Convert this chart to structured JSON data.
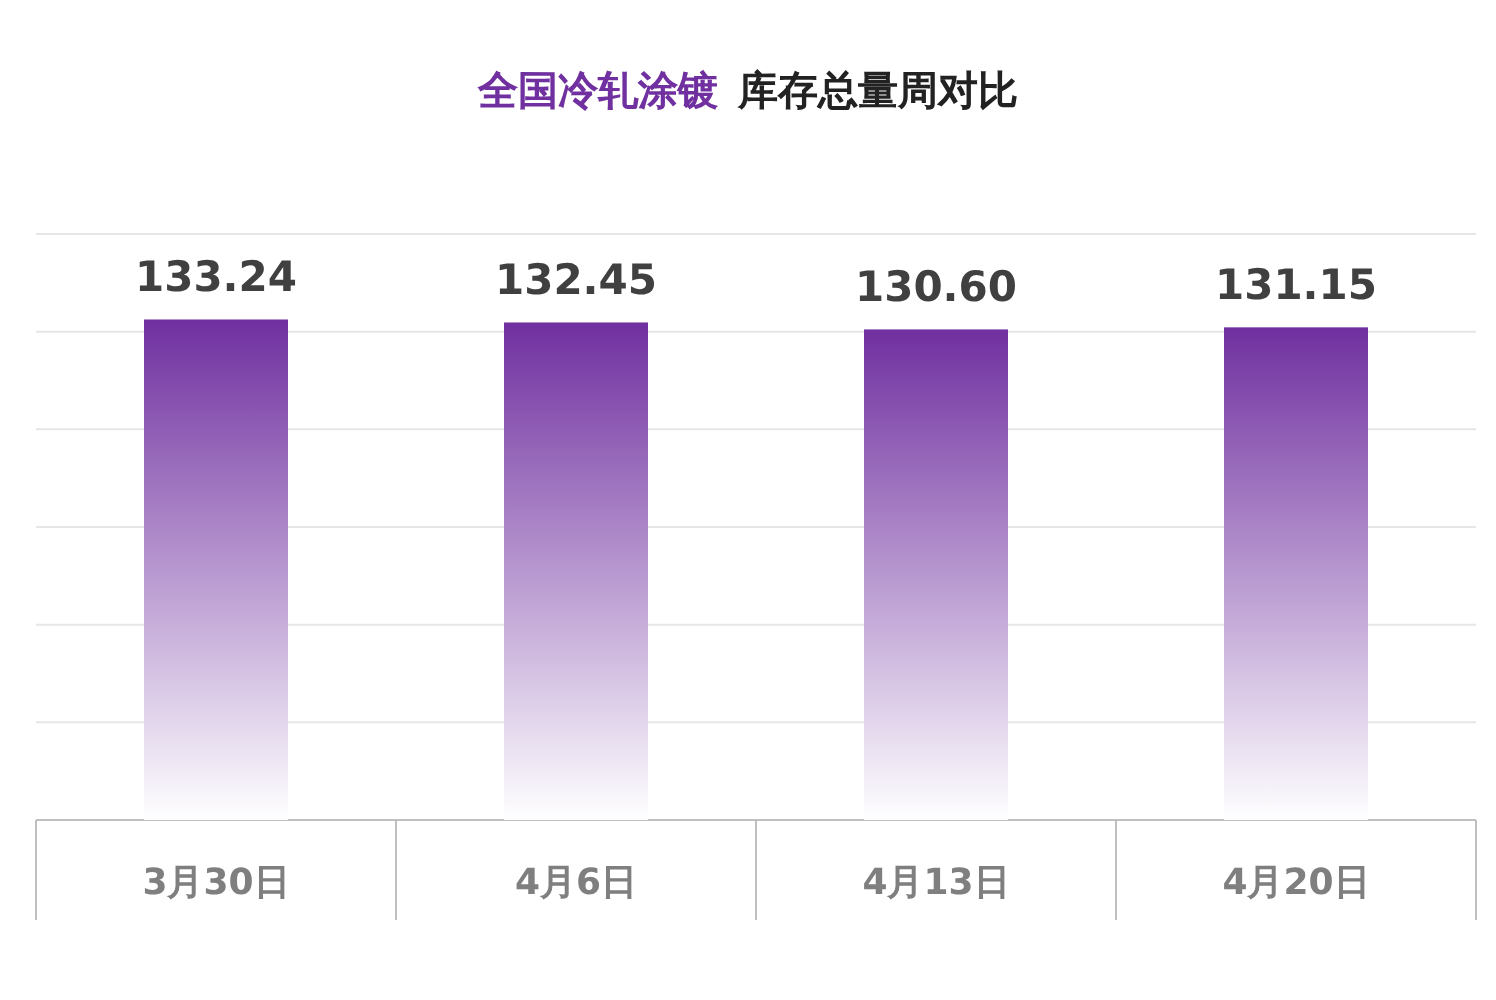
{
  "chart_data": {
    "type": "bar",
    "title": "全国冷轧涂镀",
    "subtitle": "库存总量周对比",
    "categories": [
      "3月30日",
      "4月6日",
      "4月13日",
      "4月20日"
    ],
    "values": [
      133.24,
      132.45,
      130.6,
      131.15
    ],
    "value_labels": [
      "133.24",
      "132.45",
      "130.60",
      "131.15"
    ],
    "color": "#7030a0",
    "ylim": [
      0,
      156
    ],
    "yticks": [
      {
        "value": 0,
        "label": null
      },
      {
        "value": 26,
        "label": null
      },
      {
        "value": 52,
        "label": null
      },
      {
        "value": 78,
        "label": null
      },
      {
        "value": 104,
        "label": null
      },
      {
        "value": 130,
        "label": null
      },
      {
        "value": 156,
        "label": null
      }
    ],
    "grid": "y",
    "tick_labels": "x"
  }
}
